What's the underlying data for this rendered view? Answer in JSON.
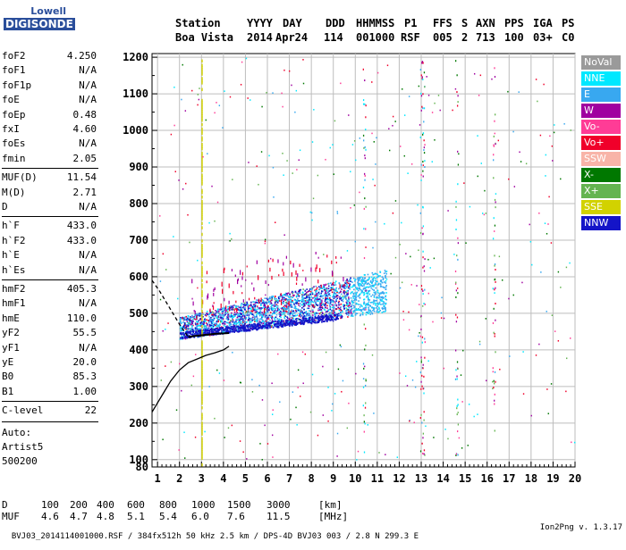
{
  "logo": {
    "line1": "Lowell",
    "line2": "DIGISONDE"
  },
  "header": {
    "labels": [
      "Station",
      "YYYY",
      "DAY",
      "DDD",
      "HHMMSS",
      "P1",
      "FFS",
      "S",
      "AXN",
      "PPS",
      "IGA",
      "PS"
    ],
    "values": [
      "Boa Vista",
      "2014",
      "Apr24",
      "114",
      "001000",
      "RSF",
      "005",
      "2",
      "713",
      "100",
      "03+",
      "C0"
    ]
  },
  "params": [
    {
      "label": "foF2",
      "value": "4.250"
    },
    {
      "label": "foF1",
      "value": "N/A"
    },
    {
      "label": "foF1p",
      "value": "N/A"
    },
    {
      "label": "foE",
      "value": "N/A"
    },
    {
      "label": "foEp",
      "value": "0.48"
    },
    {
      "label": "fxI",
      "value": "4.60"
    },
    {
      "label": "foEs",
      "value": "N/A"
    },
    {
      "label": "fmin",
      "value": "2.05"
    },
    {
      "label": "MUF(D)",
      "value": "11.54"
    },
    {
      "label": "M(D)",
      "value": "2.71"
    },
    {
      "label": "D",
      "value": "N/A"
    },
    {
      "label": "h`F",
      "value": "433.0"
    },
    {
      "label": "h`F2",
      "value": "433.0"
    },
    {
      "label": "h`E",
      "value": "N/A"
    },
    {
      "label": "h`Es",
      "value": "N/A"
    },
    {
      "label": "hmF2",
      "value": "405.3"
    },
    {
      "label": "hmF1",
      "value": "N/A"
    },
    {
      "label": "hmE",
      "value": "110.0"
    },
    {
      "label": "yF2",
      "value": "55.5"
    },
    {
      "label": "yF1",
      "value": "N/A"
    },
    {
      "label": "yE",
      "value": "20.0"
    },
    {
      "label": "B0",
      "value": "85.3"
    },
    {
      "label": "B1",
      "value": "1.00"
    },
    {
      "label": "C-level",
      "value": "22"
    }
  ],
  "auto": {
    "line1": "Auto:",
    "line2": "Artist5",
    "line3": "500200"
  },
  "legend": [
    {
      "label": "NoVal",
      "color": "#9a9a9a"
    },
    {
      "label": "NNE",
      "color": "#00e8ff"
    },
    {
      "label": "E",
      "color": "#38a8f0"
    },
    {
      "label": "W",
      "color": "#a000a0"
    },
    {
      "label": "Vo-",
      "color": "#ff3c96"
    },
    {
      "label": "Vo+",
      "color": "#f0002a"
    },
    {
      "label": "SSW",
      "color": "#f8b4a8"
    },
    {
      "label": "X-",
      "color": "#007800"
    },
    {
      "label": "X+",
      "color": "#64b450"
    },
    {
      "label": "SSE",
      "color": "#d2d200"
    },
    {
      "label": "NNW",
      "color": "#1414c8"
    }
  ],
  "mufTable": {
    "dLabel": "D",
    "dValues": [
      "100",
      "200",
      "400",
      "600",
      "800",
      "1000",
      "1500",
      "3000"
    ],
    "dUnit": "[km]",
    "mufLabel": "MUF",
    "mufValues": [
      "4.6",
      "4.7",
      "4.8",
      "5.1",
      "5.4",
      "6.0",
      "7.6",
      "11.5"
    ],
    "mufUnit": "[MHz]"
  },
  "footer": {
    "left": "BVJ03_2014114001000.RSF / 384fx512h 50 kHz 2.5 km / DPS-4D BVJ03 003 / 2.8 N 299.3 E",
    "right": "Ion2Png v. 1.3.17"
  },
  "chart_data": {
    "type": "scatter",
    "xlim": [
      0.75,
      20
    ],
    "ylim": [
      80,
      1210
    ],
    "xticks": [
      1,
      2,
      3,
      4,
      5,
      6,
      7,
      8,
      9,
      10,
      11,
      12,
      13,
      14,
      15,
      16,
      17,
      18,
      19,
      20
    ],
    "yticks": [
      80,
      100,
      200,
      300,
      400,
      500,
      600,
      700,
      800,
      900,
      1000,
      1100,
      1200
    ],
    "grid": true,
    "legend_position": "right",
    "fit_curves": [
      {
        "name": "trace",
        "x": [
          2.4,
          2.7,
          3.0,
          3.3,
          3.6,
          4.0,
          4.25
        ],
        "y": [
          435,
          438,
          440,
          442,
          444,
          445,
          446
        ]
      },
      {
        "name": "upper",
        "x": [
          0.75,
          1.1,
          1.5,
          2.0,
          2.4
        ],
        "y": [
          590,
          560,
          520,
          470,
          435
        ]
      },
      {
        "name": "profile",
        "x": [
          0.75,
          1.0,
          1.3,
          1.6,
          2.0,
          2.4,
          2.8,
          3.2,
          3.6,
          4.0,
          4.25
        ],
        "y": [
          230,
          255,
          285,
          315,
          345,
          365,
          375,
          385,
          392,
          400,
          410
        ]
      }
    ]
  }
}
